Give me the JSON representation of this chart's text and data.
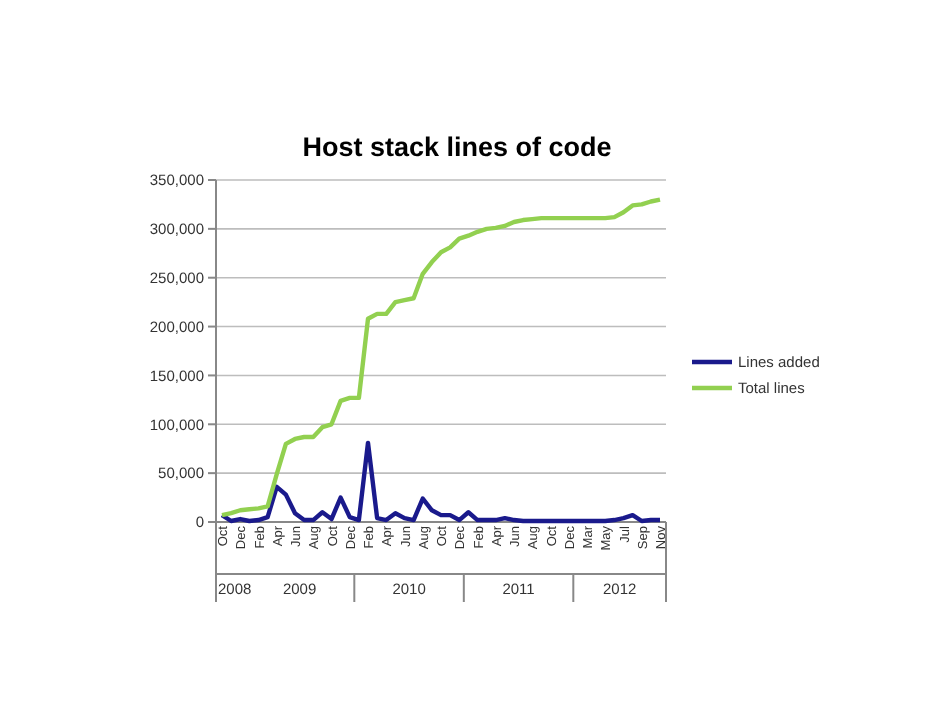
{
  "chart_data": {
    "type": "line",
    "title": "Host stack lines of code",
    "categories": [
      "Oct",
      null,
      "Dec",
      null,
      "Feb",
      null,
      "Apr",
      null,
      "Jun",
      null,
      "Aug",
      null,
      "Oct",
      null,
      "Dec",
      null,
      "Feb",
      null,
      "Apr",
      null,
      "Jun",
      null,
      "Aug",
      null,
      "Oct",
      null,
      "Dec",
      null,
      "Feb",
      null,
      "Apr",
      null,
      "Jun",
      null,
      "Aug",
      null,
      "Oct",
      null,
      "Dec",
      null,
      "Mar",
      null,
      "May",
      null,
      "Jul",
      null,
      "Sep",
      null,
      "Nov"
    ],
    "series": [
      {
        "name": "Lines added",
        "color": "#1a1a8c",
        "values": [
          7000,
          1000,
          3000,
          1000,
          2000,
          5000,
          36000,
          28000,
          9000,
          2000,
          2000,
          10000,
          3000,
          25000,
          5000,
          2000,
          81000,
          4000,
          2000,
          9000,
          4000,
          2000,
          24000,
          12000,
          7000,
          7000,
          2000,
          10000,
          2000,
          2000,
          2000,
          4000,
          2000,
          1000,
          1000,
          1000,
          1000,
          1000,
          1000,
          1000,
          1000,
          1000,
          1000,
          2000,
          4000,
          7000,
          1000,
          2000,
          2000
        ]
      },
      {
        "name": "Total lines",
        "color": "#92d050",
        "values": [
          7000,
          9000,
          12000,
          13000,
          14000,
          16000,
          49000,
          80000,
          85000,
          87000,
          87000,
          97000,
          100000,
          124000,
          127000,
          127000,
          208000,
          213000,
          213000,
          225000,
          227000,
          229000,
          254000,
          266000,
          276000,
          281000,
          290000,
          293000,
          297000,
          300000,
          301000,
          303000,
          307000,
          309000,
          310000,
          311000,
          311000,
          311000,
          311000,
          311000,
          311000,
          311000,
          311000,
          312000,
          317000,
          324000,
          325000,
          328000,
          330000
        ]
      }
    ],
    "ylim": [
      0,
      350000
    ],
    "yticks": [
      {
        "value": 0,
        "label": "0"
      },
      {
        "value": 50000,
        "label": "50,000"
      },
      {
        "value": 100000,
        "label": "100,000"
      },
      {
        "value": 150000,
        "label": "150,000"
      },
      {
        "value": 200000,
        "label": "200,000"
      },
      {
        "value": 250000,
        "label": "250,000"
      },
      {
        "value": 300000,
        "label": "300,000"
      },
      {
        "value": 350000,
        "label": "350,000"
      }
    ],
    "grid": "y",
    "legend": "right",
    "marker": "none",
    "line_style": "solid",
    "annotations": [
      "2008",
      "2009",
      "2010",
      "2011",
      "2012"
    ]
  }
}
